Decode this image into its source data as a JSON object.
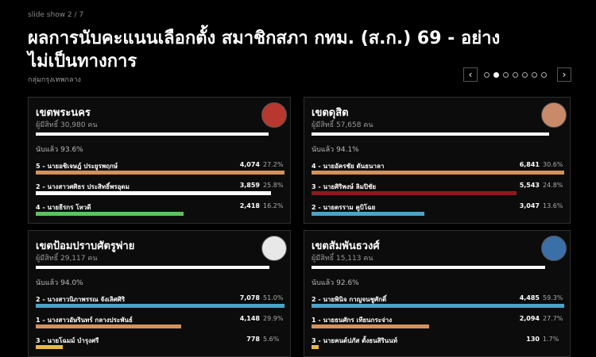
{
  "header": {
    "eyebrow": "slide show 2 / 7",
    "title_line1": "ผลการนับคะแนนเลือกตั้ง สมาชิกสภา กทม. (ส.ก.) 69 - อย่าง",
    "title_line2": "ไม่เป็นทางการ",
    "subtitle": "กลุ่มกรุงเทพกลาง"
  },
  "pagination": {
    "prev": "‹",
    "next": "›"
  },
  "cards": [
    {
      "district": "เขตพระนคร",
      "voters": "ผู้มีสิทธิ์ 30,980 คน",
      "counted_label": "นับแล้ว",
      "counted": "93.6%",
      "avatar_color": "#b8372f",
      "candidates": [
        {
          "name": "5 - นายอชิเจษฎ์ ประยูรพฤกษ์",
          "votes": "4,074",
          "share": "27.2%",
          "color": "#d4915a"
        },
        {
          "name": "2 - นางสาวศศิธร ประสิทธิ์พรอุดม",
          "votes": "3,859",
          "share": "25.8%",
          "color": "#ffffff"
        },
        {
          "name": "4 - นายธีรกร โหวดี",
          "votes": "2,418",
          "share": "16.2%",
          "color": "#5cc45c"
        }
      ]
    },
    {
      "district": "เขตดุสิต",
      "voters": "ผู้มีสิทธิ์ 57,658 คน",
      "counted_label": "นับแล้ว",
      "counted": "94.1%",
      "avatar_color": "#c98a6a",
      "candidates": [
        {
          "name": "4 - นายอัครชัย ตันธนาลา",
          "votes": "6,841",
          "share": "30.6%",
          "color": "#d4915a"
        },
        {
          "name": "3 - นายศิริพงษ์ ลิมปิชัย",
          "votes": "5,543",
          "share": "24.8%",
          "color": "#8b1a1e"
        },
        {
          "name": "2 - นายตรราม คูบิโฉย",
          "votes": "3,047",
          "share": "13.6%",
          "color": "#4aa3c8"
        }
      ]
    },
    {
      "district": "เขตป้อมปราบศัตรูพ่าย",
      "voters": "ผู้มีสิทธิ์ 29,117 คน",
      "counted_label": "นับแล้ว",
      "counted": "94.0%",
      "avatar_color": "#e8e8e8",
      "candidates": [
        {
          "name": "2 - นางสาวนิภาพรรณ จังเลิศศิริ",
          "votes": "7,078",
          "share": "51.0%",
          "color": "#4aa3c8"
        },
        {
          "name": "1 - นางสาวอัษรินทร์ กลางประพันธ์",
          "votes": "4,148",
          "share": "29.9%",
          "color": "#d4915a"
        },
        {
          "name": "3 - นายโฉมม์ บำรุงศรี",
          "votes": "778",
          "share": "5.6%",
          "color": "#e8b84a"
        }
      ]
    },
    {
      "district": "เขตสัมพันธวงศ์",
      "voters": "ผู้มีสิทธิ์ 15,113 คน",
      "counted_label": "นับแล้ว",
      "counted": "92.6%",
      "avatar_color": "#3a6fa8",
      "candidates": [
        {
          "name": "2 - นายพินิจ กาญจนชูศักดิ์",
          "votes": "4,485",
          "share": "59.3%",
          "color": "#4aa3c8"
        },
        {
          "name": "1 - นายธนศักร เทียนกระจ่าง",
          "votes": "2,094",
          "share": "27.7%",
          "color": "#d4915a"
        },
        {
          "name": "3 - นายคนต์ปภัส ตั้งธนสิรินนท์",
          "votes": "130",
          "share": "1.7%",
          "color": "#e8b84a"
        }
      ]
    }
  ]
}
